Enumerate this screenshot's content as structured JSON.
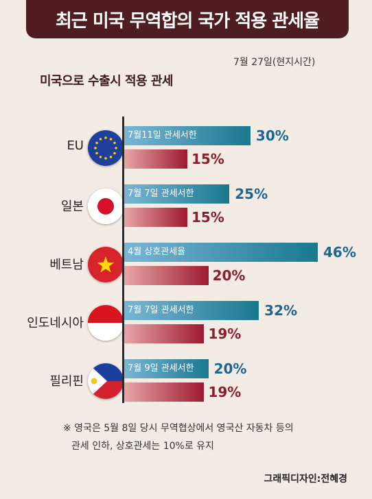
{
  "title": "최근 미국 무역합의 국가 적용 관세율",
  "date": "7월 27일(현지시간)",
  "subtitle": "미국으로 수출시 적용 관세",
  "footnote": {
    "line1": "※ 영국은 5월 8일 당시 무역협상에서 영국산 자동차 등의",
    "line2": "관세 인하,  상호관세는 10%로 유지"
  },
  "credit": "그래픽디자인:전혜경",
  "chart_data": {
    "type": "bar",
    "title": "최근 미국 무역합의 국가 적용 관세율",
    "categories": [
      "EU",
      "일본",
      "베트남",
      "인도네시아",
      "필리핀"
    ],
    "series": [
      {
        "name": "",
        "values": [
          30,
          25,
          46,
          32,
          20
        ],
        "labels": [
          "30%",
          "25%",
          "46%",
          "32%",
          "20%"
        ],
        "notes": [
          "7월11일 관세서한",
          "7월 7일 관세서한",
          "4월 상호관세율",
          "7월 7일 관세서한",
          "7월 9일 관세서한"
        ],
        "color": "#19788f"
      },
      {
        "name": "",
        "values": [
          15,
          15,
          20,
          19,
          19
        ],
        "labels": [
          "15%",
          "15%",
          "20%",
          "19%",
          "19%"
        ],
        "color": "#9d1a2f"
      }
    ],
    "flags": [
      "eu-flag-icon",
      "japan-flag-icon",
      "vietnam-flag-icon",
      "indonesia-flag-icon",
      "philippines-flag-icon"
    ],
    "xlim": [
      0,
      46
    ]
  }
}
